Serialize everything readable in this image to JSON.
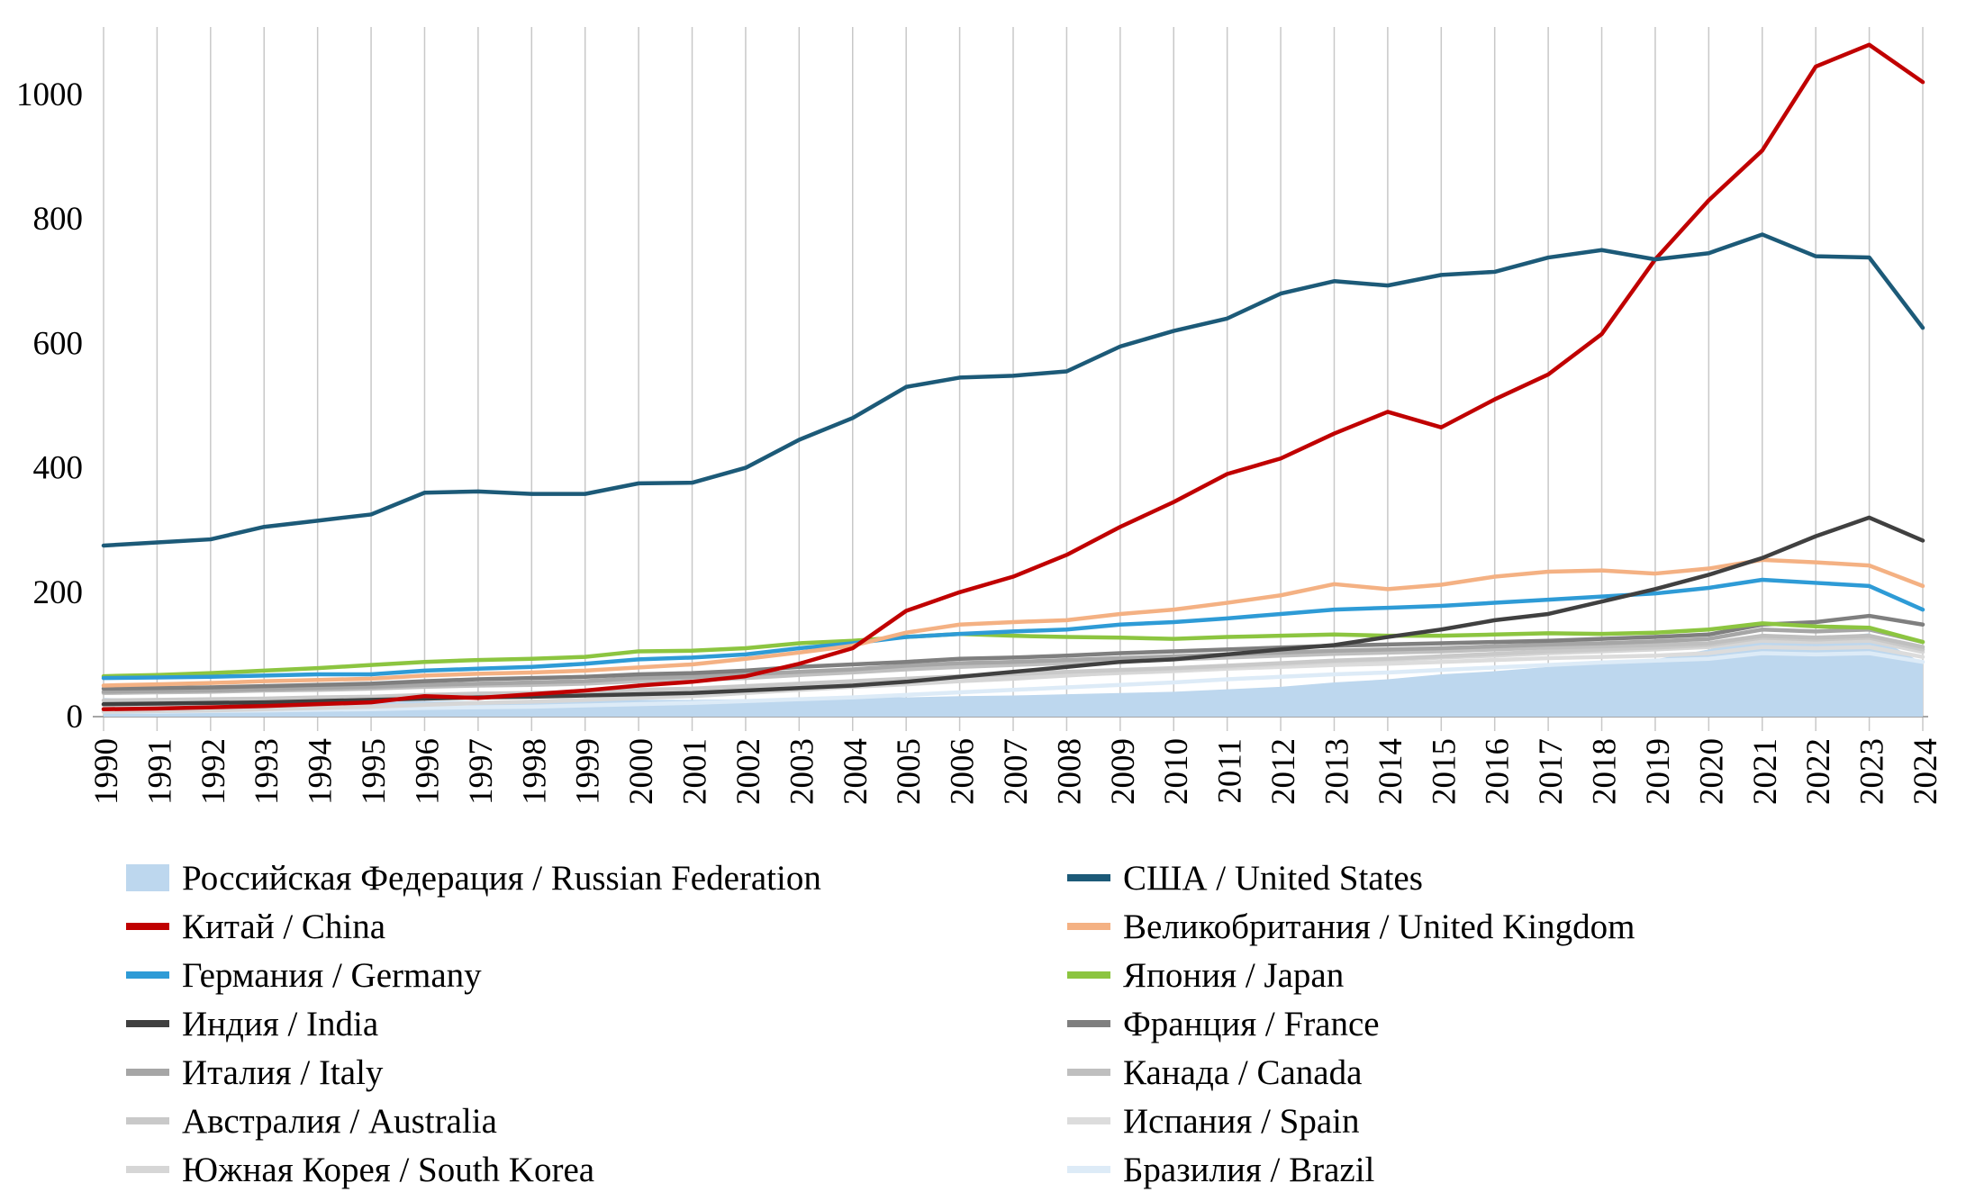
{
  "chart_data": {
    "type": "line",
    "title": "",
    "xlabel": "",
    "ylabel": "",
    "x": [
      1990,
      1991,
      1992,
      1993,
      1994,
      1995,
      1996,
      1997,
      1998,
      1999,
      2000,
      2001,
      2002,
      2003,
      2004,
      2005,
      2006,
      2007,
      2008,
      2009,
      2010,
      2011,
      2012,
      2013,
      2014,
      2015,
      2016,
      2017,
      2018,
      2019,
      2020,
      2021,
      2022,
      2023,
      2024
    ],
    "ylim": [
      0,
      1100
    ],
    "yticks": [
      0,
      200,
      400,
      600,
      800,
      1000
    ],
    "grid": "vertical",
    "legend_position": "bottom-two-columns",
    "style": {
      "grid_color": "#C8C8C8",
      "axis_color": "#A6A6A6",
      "text_color": "#000000"
    },
    "series": [
      {
        "id": "russia",
        "name": "Российская Федерация / Russian Federation",
        "type": "area",
        "color": "#BDD7EE",
        "values": [
          30,
          28,
          26,
          25,
          24,
          24,
          25,
          25,
          25,
          26,
          27,
          27,
          28,
          30,
          32,
          31,
          33,
          34,
          36,
          38,
          40,
          44,
          48,
          55,
          60,
          68,
          73,
          80,
          86,
          92,
          108,
          132,
          126,
          134,
          86
        ]
      },
      {
        "id": "brazil",
        "name": "Бразилия / Brazil",
        "type": "line",
        "color": "#DDEBF7",
        "values": [
          8,
          8,
          9,
          10,
          11,
          12,
          14,
          15,
          16,
          18,
          20,
          22,
          25,
          28,
          31,
          35,
          39,
          43,
          47,
          51,
          55,
          60,
          64,
          68,
          71,
          75,
          79,
          83,
          87,
          90,
          93,
          102,
          100,
          102,
          88
        ]
      },
      {
        "id": "spain",
        "name": "Испания / Spain",
        "type": "line",
        "color": "#DCDCDC",
        "values": [
          18,
          19,
          20,
          22,
          24,
          26,
          29,
          31,
          33,
          35,
          38,
          40,
          44,
          48,
          52,
          56,
          60,
          63,
          67,
          70,
          73,
          77,
          80,
          83,
          85,
          88,
          91,
          94,
          96,
          98,
          102,
          112,
          110,
          112,
          96
        ]
      },
      {
        "id": "south_korea",
        "name": "Южная Корея / South Korea",
        "type": "line",
        "color": "#D6D6D6",
        "values": [
          8,
          9,
          10,
          12,
          14,
          16,
          19,
          22,
          24,
          27,
          30,
          33,
          38,
          43,
          48,
          52,
          57,
          61,
          66,
          71,
          75,
          80,
          84,
          88,
          91,
          95,
          98,
          102,
          105,
          108,
          112,
          122,
          120,
          122,
          104
        ]
      },
      {
        "id": "australia",
        "name": "Австралия / Australia",
        "type": "line",
        "color": "#C9C9C9",
        "values": [
          26,
          27,
          28,
          29,
          31,
          32,
          35,
          37,
          38,
          40,
          43,
          45,
          49,
          53,
          57,
          61,
          65,
          68,
          72,
          75,
          78,
          82,
          86,
          90,
          93,
          97,
          101,
          105,
          108,
          111,
          115,
          127,
          124,
          127,
          108
        ]
      },
      {
        "id": "canada",
        "name": "Канада / Canada",
        "type": "line",
        "color": "#BFBFBF",
        "values": [
          38,
          39,
          40,
          42,
          43,
          45,
          48,
          50,
          51,
          53,
          57,
          59,
          62,
          67,
          71,
          76,
          80,
          83,
          86,
          89,
          92,
          95,
          98,
          101,
          103,
          105,
          108,
          111,
          113,
          115,
          118,
          130,
          127,
          130,
          112
        ]
      },
      {
        "id": "italy",
        "name": "Италия / Italy",
        "type": "line",
        "color": "#A6A6A6",
        "values": [
          40,
          41,
          42,
          44,
          46,
          48,
          51,
          53,
          55,
          57,
          62,
          64,
          68,
          72,
          76,
          82,
          86,
          88,
          91,
          94,
          97,
          100,
          103,
          106,
          108,
          110,
          113,
          116,
          118,
          121,
          125,
          140,
          137,
          140,
          120
        ]
      },
      {
        "id": "france",
        "name": "Франция / France",
        "type": "line",
        "color": "#7F7F7F",
        "values": [
          45,
          46,
          47,
          49,
          51,
          53,
          57,
          60,
          62,
          64,
          68,
          70,
          74,
          80,
          84,
          88,
          93,
          95,
          98,
          102,
          105,
          108,
          111,
          114,
          116,
          118,
          120,
          122,
          125,
          128,
          132,
          148,
          152,
          162,
          148
        ]
      },
      {
        "id": "japan",
        "name": "Япония / Japan",
        "type": "line",
        "color": "#8CC540",
        "values": [
          65,
          67,
          70,
          74,
          78,
          83,
          88,
          91,
          93,
          96,
          105,
          106,
          110,
          118,
          122,
          128,
          133,
          130,
          128,
          127,
          125,
          128,
          130,
          132,
          130,
          130,
          132,
          134,
          133,
          135,
          140,
          150,
          145,
          143,
          120
        ]
      },
      {
        "id": "germany",
        "name": "Германия / Germany",
        "type": "line",
        "color": "#2E9BD6",
        "values": [
          62,
          63,
          64,
          66,
          68,
          68,
          74,
          77,
          80,
          85,
          92,
          95,
          100,
          110,
          118,
          128,
          133,
          137,
          140,
          148,
          152,
          158,
          165,
          172,
          175,
          178,
          183,
          188,
          193,
          198,
          207,
          220,
          215,
          210,
          172
        ]
      },
      {
        "id": "uk",
        "name": "Великобритания / United Kingdom",
        "type": "line",
        "color": "#F4B183",
        "values": [
          50,
          52,
          54,
          57,
          59,
          61,
          66,
          69,
          71,
          74,
          79,
          84,
          93,
          103,
          114,
          135,
          148,
          152,
          155,
          165,
          172,
          183,
          195,
          213,
          205,
          212,
          225,
          233,
          235,
          230,
          238,
          252,
          248,
          243,
          210
        ]
      },
      {
        "id": "india",
        "name": "Индия / India",
        "type": "line",
        "color": "#404040",
        "values": [
          20,
          21,
          22,
          23,
          25,
          27,
          29,
          31,
          32,
          34,
          36,
          38,
          42,
          46,
          50,
          56,
          64,
          72,
          80,
          88,
          92,
          100,
          108,
          115,
          128,
          140,
          155,
          165,
          185,
          205,
          228,
          255,
          290,
          320,
          283
        ]
      },
      {
        "id": "china",
        "name": "Китай / China",
        "type": "line",
        "color": "#C00000",
        "values": [
          12,
          13,
          15,
          17,
          20,
          23,
          33,
          30,
          36,
          42,
          50,
          56,
          65,
          85,
          110,
          170,
          200,
          225,
          260,
          305,
          345,
          390,
          415,
          455,
          490,
          465,
          510,
          550,
          615,
          735,
          830,
          910,
          1045,
          1080,
          1020
        ]
      },
      {
        "id": "us",
        "name": "США / United States",
        "type": "line",
        "color": "#1C5A78",
        "values": [
          275,
          280,
          285,
          305,
          315,
          325,
          360,
          362,
          358,
          358,
          375,
          376,
          400,
          445,
          480,
          530,
          545,
          548,
          555,
          595,
          620,
          640,
          680,
          700,
          693,
          710,
          715,
          738,
          750,
          735,
          745,
          775,
          740,
          738,
          625
        ]
      }
    ],
    "legend": {
      "rows": [
        [
          "russia",
          "us"
        ],
        [
          "china",
          "uk"
        ],
        [
          "germany",
          "japan"
        ],
        [
          "india",
          "france"
        ],
        [
          "italy",
          "canada"
        ],
        [
          "australia",
          "spain"
        ],
        [
          "south_korea",
          "brazil"
        ]
      ]
    }
  }
}
